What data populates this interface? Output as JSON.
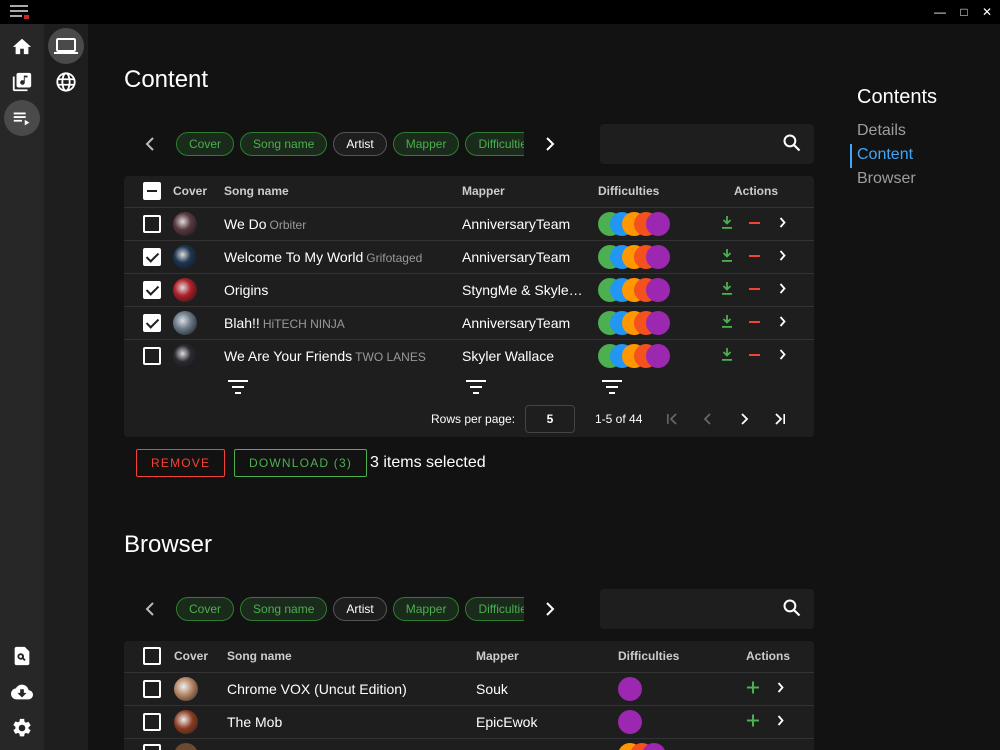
{
  "colors": {
    "accent": "#42a5f5",
    "green": "#4caf50",
    "red": "#f44336"
  },
  "titlebar": {
    "minimize": "—",
    "maximize": "□",
    "close": "✕"
  },
  "content": {
    "title": "Content",
    "chips": [
      "Cover",
      "Song name",
      "Artist",
      "Mapper",
      "Difficulties"
    ],
    "search_placeholder": "",
    "headers": {
      "cover": "Cover",
      "song": "Song name",
      "mapper": "Mapper",
      "difficulties": "Difficulties",
      "actions": "Actions"
    },
    "rows": [
      {
        "checked": false,
        "song": "We Do",
        "artist": "Orbiter",
        "mapper": "AnniversaryTeam",
        "cover": "#5a3a40"
      },
      {
        "checked": true,
        "song": "Welcome To My World",
        "artist": "Grifotaged",
        "mapper": "AnniversaryTeam",
        "cover": "#1e3550"
      },
      {
        "checked": true,
        "song": "Origins",
        "artist": "",
        "mapper": "StyngMe & Skyler Wallace",
        "cover": "#b0202a"
      },
      {
        "checked": true,
        "song": "Blah!!",
        "artist": "HiTECH NINJA",
        "mapper": "AnniversaryTeam",
        "cover": "#6b7b8a"
      },
      {
        "checked": false,
        "song": "We Are Your Friends",
        "artist": "TWO LANES",
        "mapper": "Skyler Wallace",
        "cover": "#2a2a33"
      }
    ],
    "difficulty_colors": [
      "#4caf50",
      "#2196f3",
      "#ff9800",
      "#f4511e",
      "#9c27b0"
    ],
    "pagination": {
      "rows_label": "Rows per page:",
      "rows_value": "5",
      "range": "1-5 of 44"
    },
    "remove_label": "REMOVE",
    "download_label": "DOWNLOAD (3)",
    "selected_text": "3 items selected"
  },
  "browser": {
    "title": "Browser",
    "chips": [
      "Cover",
      "Song name",
      "Artist",
      "Mapper",
      "Difficulties"
    ],
    "headers": {
      "cover": "Cover",
      "song": "Song name",
      "mapper": "Mapper",
      "difficulties": "Difficulties",
      "actions": "Actions"
    },
    "rows": [
      {
        "song": "Chrome VOX (Uncut Edition)",
        "mapper": "Souk",
        "cover": "#b08060"
      },
      {
        "song": "The Mob",
        "mapper": "EpicEwok",
        "cover": "#8a3a20"
      }
    ]
  },
  "toc": {
    "title": "Contents",
    "items": [
      "Details",
      "Content",
      "Browser"
    ]
  }
}
